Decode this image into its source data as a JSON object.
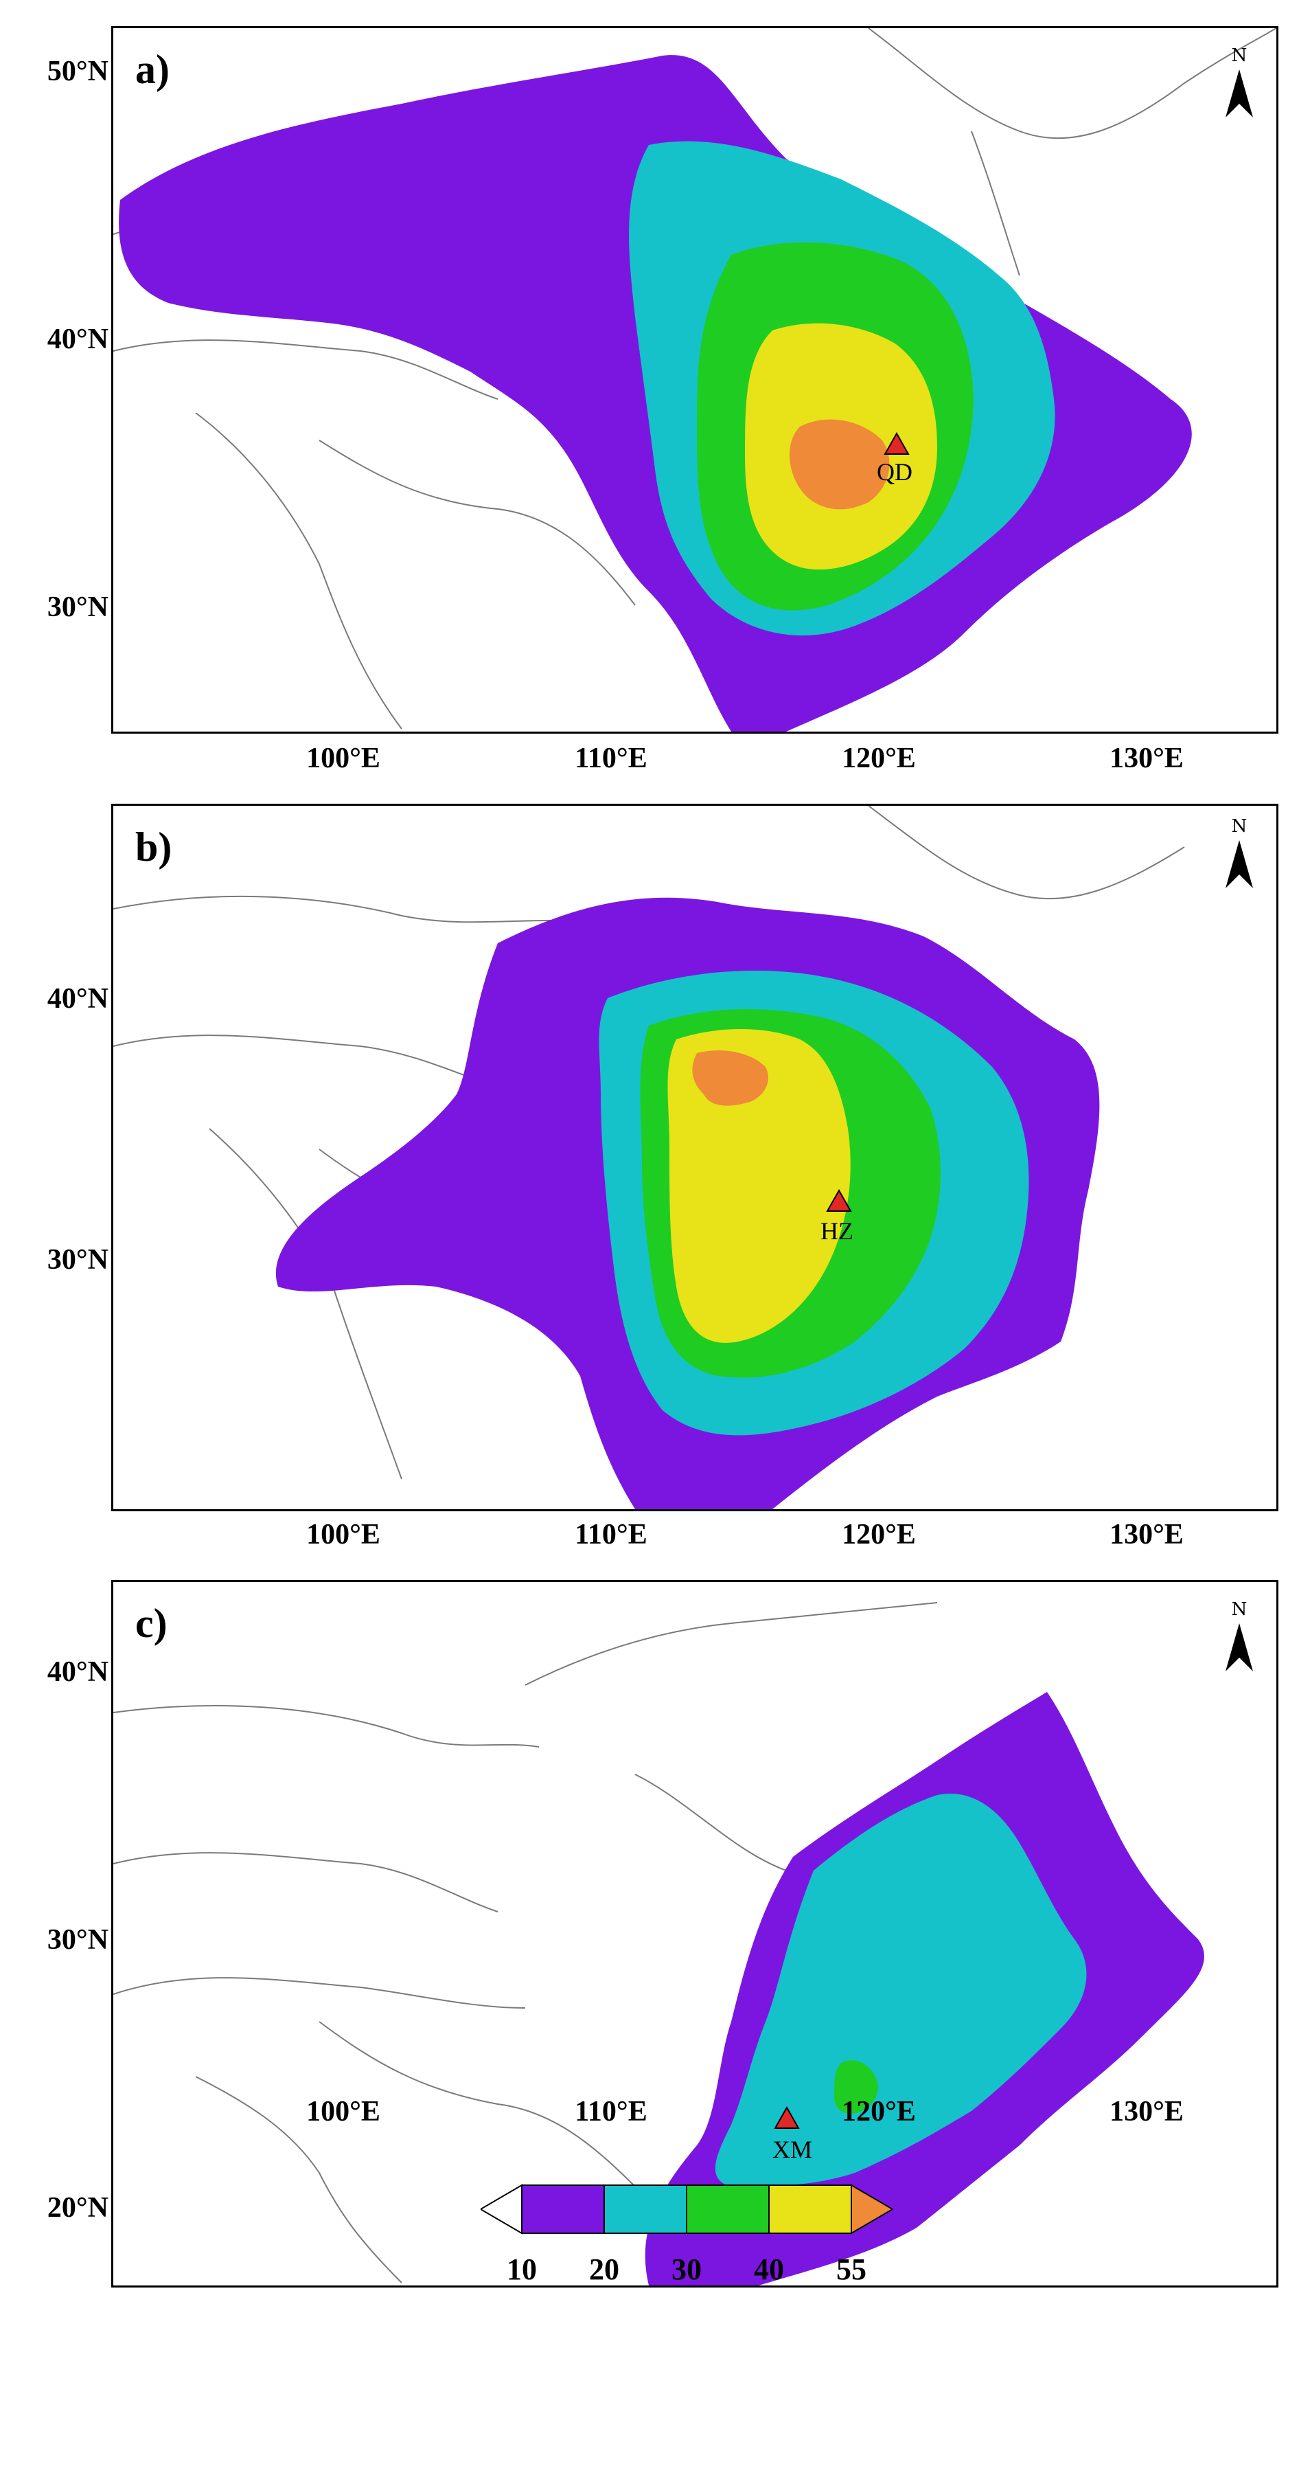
{
  "panels": [
    {
      "label": "a)",
      "lat_labels": [
        "50°N",
        "40°N",
        "30°N"
      ],
      "lon_labels": [
        "100°E",
        "110°E",
        "120°E",
        "130°E"
      ],
      "station": {
        "code": "QD",
        "lon": 120,
        "lat": 36
      }
    },
    {
      "label": "b)",
      "lat_labels": [
        "40°N",
        "30°N"
      ],
      "lon_labels": [
        "100°E",
        "110°E",
        "120°E",
        "130°E"
      ],
      "station": {
        "code": "HZ",
        "lon": 120.2,
        "lat": 30.3
      }
    },
    {
      "label": "c)",
      "lat_labels": [
        "40°N",
        "30°N",
        "20°N"
      ],
      "lon_labels": [
        "100°E",
        "110°E",
        "120°E",
        "130°E"
      ],
      "station": {
        "code": "XM",
        "lon": 118.1,
        "lat": 24.5
      }
    }
  ],
  "north_arrow_label": "N",
  "legend": {
    "levels": [
      "10",
      "20",
      "30",
      "40",
      "55"
    ],
    "colors": {
      "below": "#ffffff",
      "l10_20": "#7b16e0",
      "l20_30": "#16c2c9",
      "l30_40": "#1fcc22",
      "l40_55": "#e8e219",
      "above": "#ee8a38"
    }
  }
}
